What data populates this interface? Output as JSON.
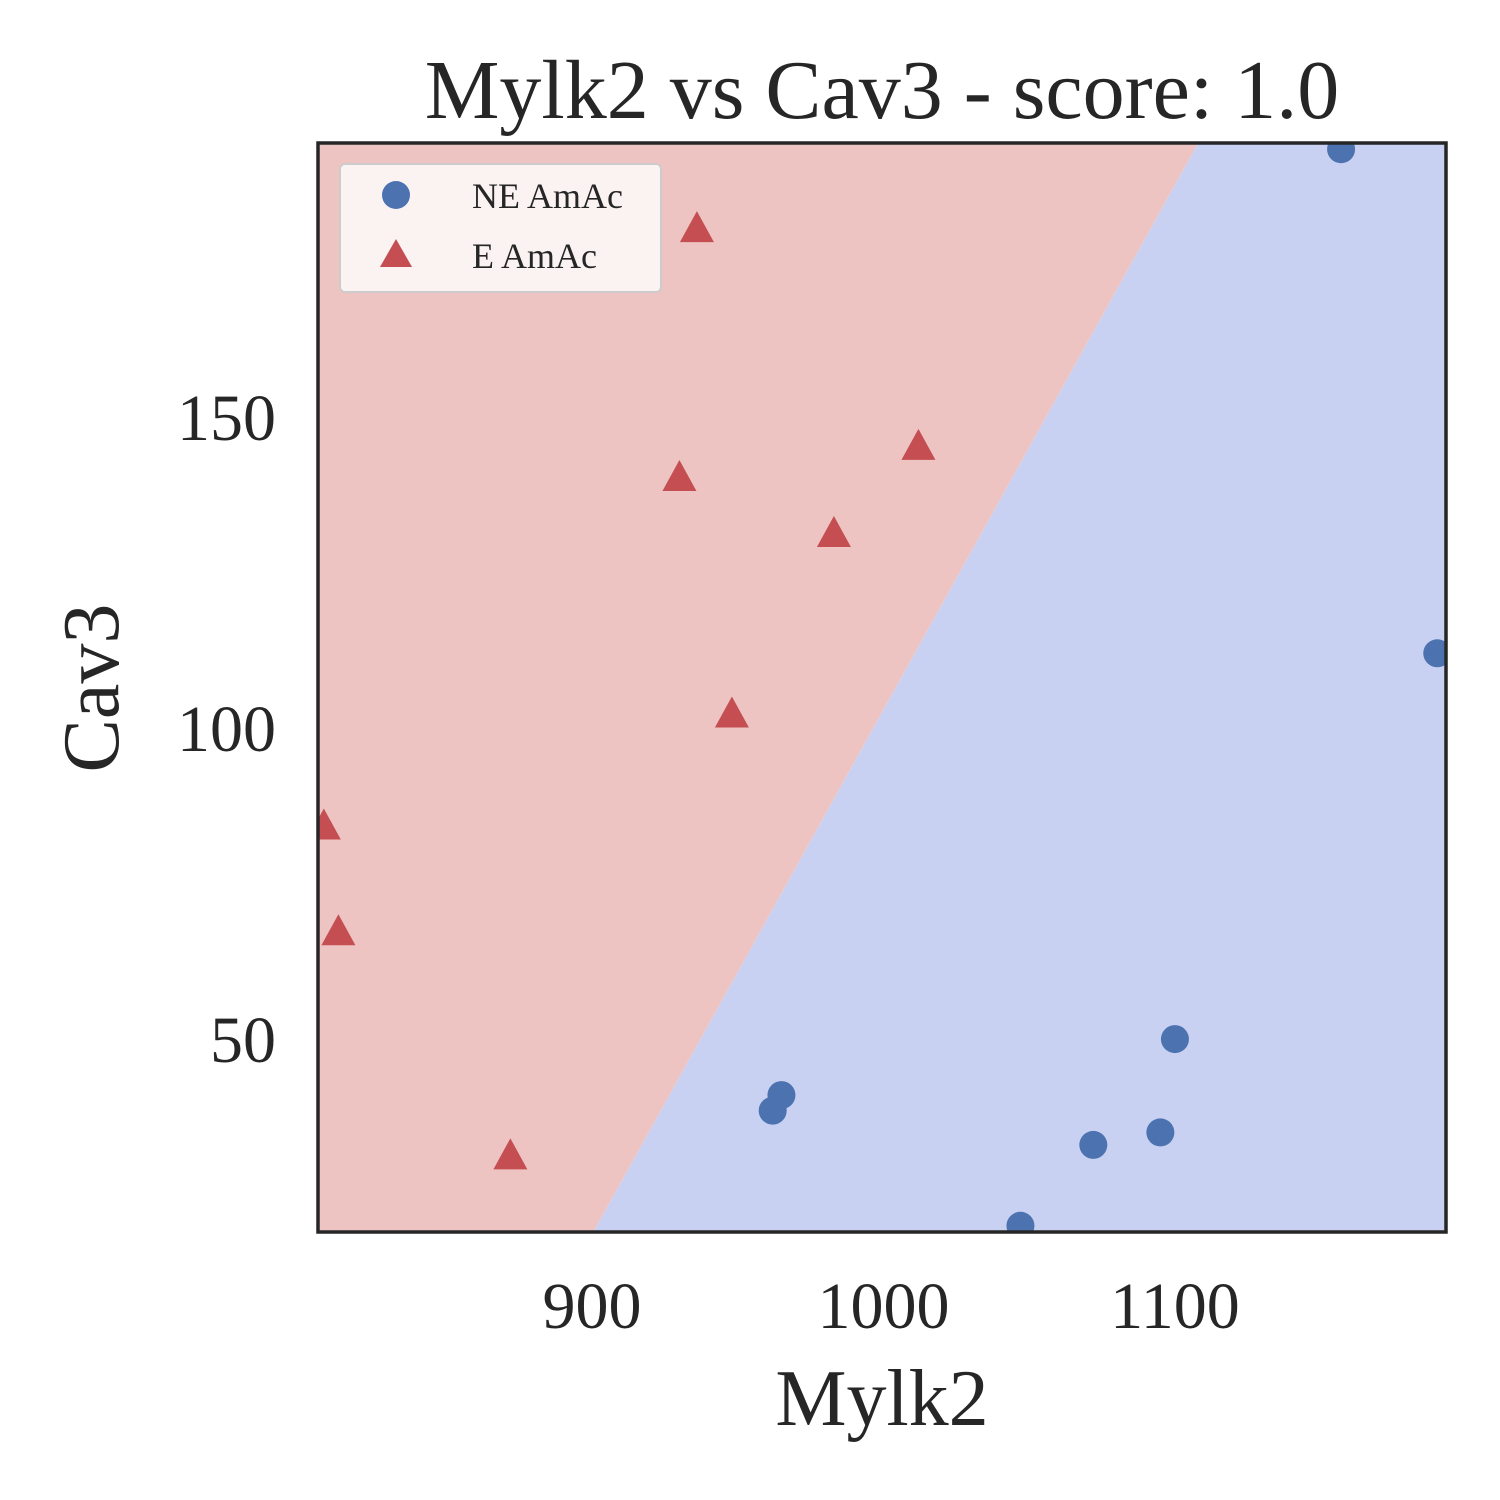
{
  "chart_data": {
    "type": "scatter",
    "title": "Mylk2 vs Cav3 - score: 1.0",
    "xlabel": "Mylk2",
    "ylabel": "Cav3",
    "xlim": [
      806,
      1193
    ],
    "ylim": [
      19,
      194
    ],
    "xticks": [
      900,
      1000,
      1100
    ],
    "yticks": [
      50,
      100,
      150
    ],
    "grid": false,
    "legend_position": "top-left",
    "decision_boundary": {
      "points": [
        [
          900.5,
          19
        ],
        [
          1108,
          194
        ]
      ],
      "regions": [
        {
          "name": "E AmAc",
          "side": "upper-left",
          "color": "#eec4c3"
        },
        {
          "name": "NE AmAc",
          "side": "lower-right",
          "color": "#c9d1f2"
        }
      ]
    },
    "series": [
      {
        "name": "NE AmAc",
        "marker": "circle",
        "color": "#4c72b0",
        "points": [
          [
            1157,
            193
          ],
          [
            1190,
            112
          ],
          [
            1100,
            50
          ],
          [
            965,
            41
          ],
          [
            962,
            38.5
          ],
          [
            1072,
            33
          ],
          [
            1095,
            35
          ],
          [
            1047,
            20
          ]
        ]
      },
      {
        "name": "E AmAc",
        "marker": "triangle",
        "color": "#c44e52",
        "points": [
          [
            936,
            180
          ],
          [
            1012,
            145
          ],
          [
            930,
            140
          ],
          [
            983,
            131
          ],
          [
            948,
            102
          ],
          [
            808,
            84
          ],
          [
            813,
            67
          ],
          [
            872,
            31
          ]
        ]
      }
    ]
  }
}
